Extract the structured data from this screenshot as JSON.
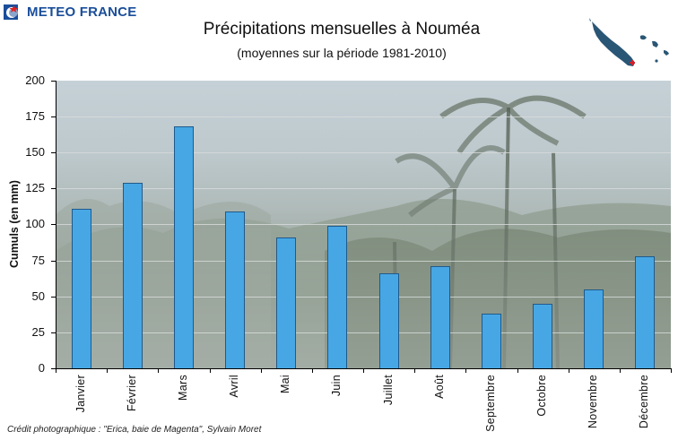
{
  "header": {
    "brand": "METEO FRANCE",
    "title": "Précipitations mensuelles à Nouméa",
    "subtitle": "(moyennes sur la période 1981-2010)",
    "map_icon": "new-caledonia-map-icon"
  },
  "footer": {
    "credit": "Crédit photographique : \"Erica, baie de Magenta\", Sylvain Moret"
  },
  "colors": {
    "bar_fill": "#47a7e4",
    "bar_border": "#1f5a8a",
    "brand": "#1a4e9a",
    "map_land": "#2a5675",
    "map_marker": "#d0202a"
  },
  "chart_data": {
    "type": "bar",
    "title": "Précipitations mensuelles à Nouméa",
    "subtitle": "(moyennes sur la période 1981-2010)",
    "xlabel": "",
    "ylabel": "Cumuls (en mm)",
    "ylim": [
      0,
      200
    ],
    "yticks": [
      0,
      25,
      50,
      75,
      100,
      125,
      150,
      175,
      200
    ],
    "grid": true,
    "legend": null,
    "categories": [
      "Janvier",
      "Février",
      "Mars",
      "Avril",
      "Mai",
      "Juin",
      "Juillet",
      "Août",
      "Septembre",
      "Octobre",
      "Novembre",
      "Décembre"
    ],
    "values": [
      111,
      129,
      168,
      109,
      91,
      99,
      66,
      71,
      38,
      45,
      55,
      78
    ],
    "background": "photo: storm with palm trees"
  }
}
